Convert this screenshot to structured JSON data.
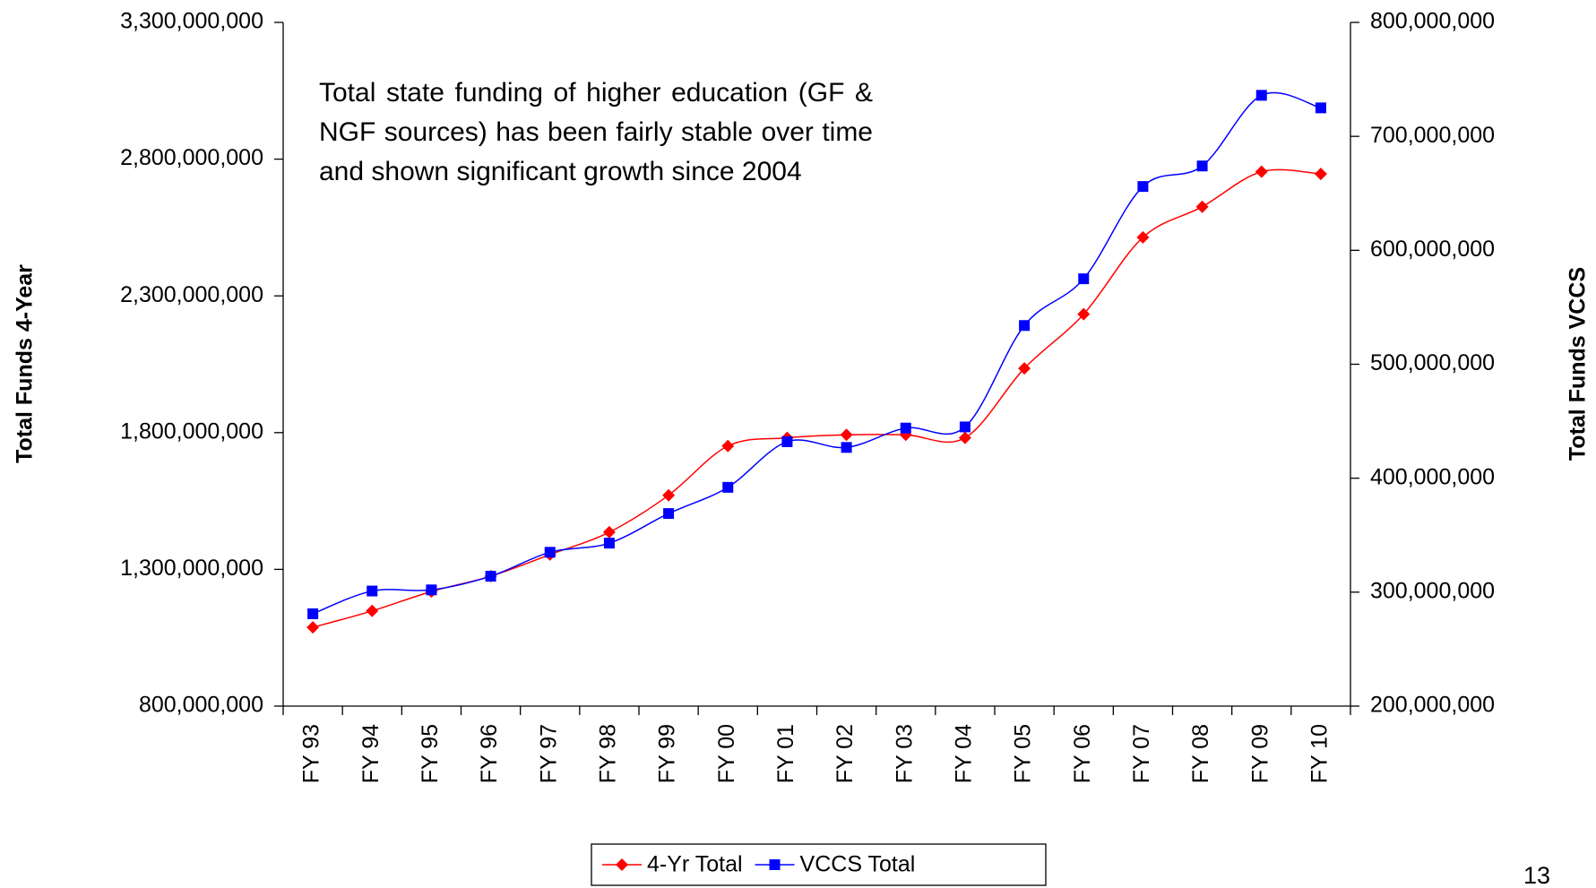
{
  "chart_data": {
    "type": "line",
    "categories": [
      "FY 93",
      "FY 94",
      "FY 95",
      "FY 96",
      "FY 97",
      "FY 98",
      "FY 99",
      "FY 00",
      "FY 01",
      "FY 02",
      "FY 03",
      "FY 04",
      "FY 05",
      "FY 06",
      "FY 07",
      "FY 08",
      "FY 09",
      "FY 10"
    ],
    "series": [
      {
        "name": "4-Yr Total",
        "color": "#ff0000",
        "marker": "diamond",
        "axis": "y",
        "values": [
          1088000000,
          1148000000,
          1219000000,
          1275000000,
          1354000000,
          1436000000,
          1571000000,
          1751000000,
          1781000000,
          1792000000,
          1792000000,
          1781000000,
          2035000000,
          2233000000,
          2514000000,
          2626000000,
          2754000000,
          2746000000
        ]
      },
      {
        "name": "VCCS Total",
        "color": "#0000ff",
        "marker": "square",
        "axis": "y2",
        "values": [
          281000000,
          301000000,
          302000000,
          314000000,
          335000000,
          343000000,
          369000000,
          392000000,
          432000000,
          427000000,
          444000000,
          445000000,
          534000000,
          575000000,
          656000000,
          674000000,
          736000000,
          725000000
        ]
      }
    ],
    "ylim": [
      800000000,
      3300000000
    ],
    "yticks": [
      {
        "value": 800000000,
        "label": "800,000,000"
      },
      {
        "value": 1300000000,
        "label": "1,300,000,000"
      },
      {
        "value": 1800000000,
        "label": "1,800,000,000"
      },
      {
        "value": 2300000000,
        "label": "2,300,000,000"
      },
      {
        "value": 2800000000,
        "label": "2,800,000,000"
      },
      {
        "value": 3300000000,
        "label": "3,300,000,000"
      }
    ],
    "y2lim": [
      200000000,
      800000000
    ],
    "y2ticks": [
      {
        "value": 200000000,
        "label": "200,000,000"
      },
      {
        "value": 300000000,
        "label": "300,000,000"
      },
      {
        "value": 400000000,
        "label": "400,000,000"
      },
      {
        "value": 500000000,
        "label": "500,000,000"
      },
      {
        "value": 600000000,
        "label": "600,000,000"
      },
      {
        "value": 700000000,
        "label": "700,000,000"
      },
      {
        "value": 800000000,
        "label": "800,000,000"
      }
    ],
    "y_label": "Total Funds 4-Year",
    "y2_label": "Total Funds VCCS",
    "annotation": "Total state funding of higher education (GF & NGF sources) has been fairly stable over time and shown significant growth since 2004",
    "legend": "bottom",
    "grid": false
  },
  "page_number": "13"
}
